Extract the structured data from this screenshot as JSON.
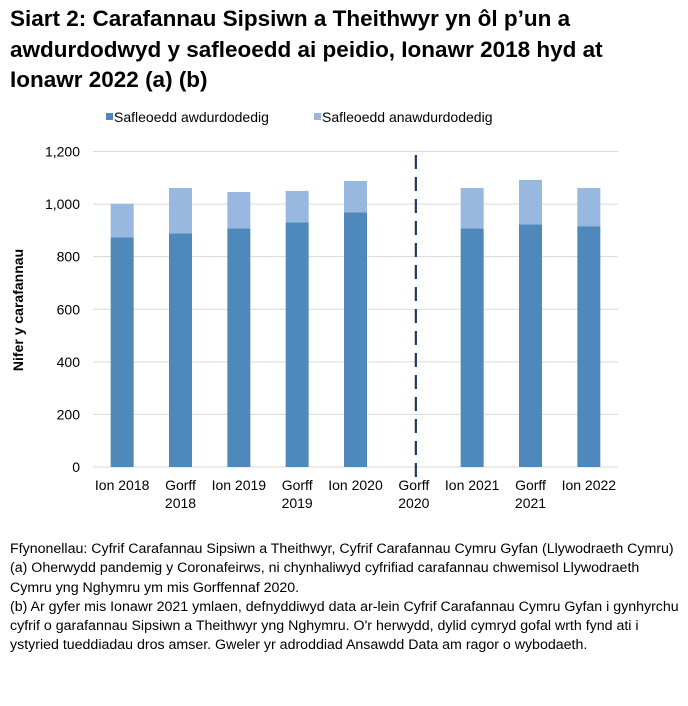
{
  "chart_data": {
    "type": "bar",
    "stacked": true,
    "title": "Siart 2: Carafannau Sipsiwn a Theithwyr yn ôl p’un a awdurdodwyd y safleoedd ai peidio, Ionawr 2018 hyd at Ionawr 2022 (a) (b)",
    "xlabel": "",
    "ylabel": "Nifer y carafannau",
    "ylim": [
      0,
      1200
    ],
    "yticks": [
      0,
      200,
      400,
      600,
      800,
      1000,
      1200
    ],
    "ytick_labels": [
      "0",
      "200",
      "400",
      "600",
      "800",
      "1,000",
      "1,200"
    ],
    "grid": true,
    "legend": "top",
    "categories": [
      [
        "Ion 2018"
      ],
      [
        "Gorff",
        "2018"
      ],
      [
        "Ion 2019"
      ],
      [
        "Gorff",
        "2019"
      ],
      [
        "Ion 2020"
      ],
      [
        "Gorff",
        "2020"
      ],
      [
        "Ion 2021"
      ],
      [
        "Gorff",
        "2021"
      ],
      [
        "Ion 2022"
      ]
    ],
    "series": [
      {
        "name": "Safleoedd awdurdodedig",
        "color": "#4F88BB",
        "values": [
          873,
          889,
          908,
          931,
          969,
          null,
          908,
          923,
          916
        ]
      },
      {
        "name": "Safleoedd anawdurdodedig",
        "color": "#98B8DF",
        "values": [
          128,
          172,
          138,
          119,
          119,
          null,
          153,
          169,
          145
        ]
      }
    ],
    "annotations": [
      {
        "type": "dashed-vertical-line",
        "at": "Gorff 2020",
        "color": "#1F3864"
      }
    ]
  },
  "notes": [
    "Ffynonellau: Cyfrif Carafannau Sipsiwn a Theithwyr, Cyfrif Carafannau Cymru Gyfan (Llywodraeth Cymru)",
    "(a) Oherwydd pandemig y Coronafeirws, ni chynhaliwyd cyfrifiad carafannau chwemisol Llywodraeth Cymru yng Nghymru ym mis Gorffennaf 2020.",
    "(b) Ar gyfer mis Ionawr 2021 ymlaen, defnyddiwyd data ar-lein Cyfrif Carafannau Cymru Gyfan i gynhyrchu cyfrif o garafannau Sipsiwn a Theithwyr yng Nghymru. O'r herwydd, dylid cymryd gofal wrth fynd ati i ystyried tueddiadau dros amser. Gweler yr adroddiad Ansawdd Data am ragor o wybodaeth."
  ]
}
